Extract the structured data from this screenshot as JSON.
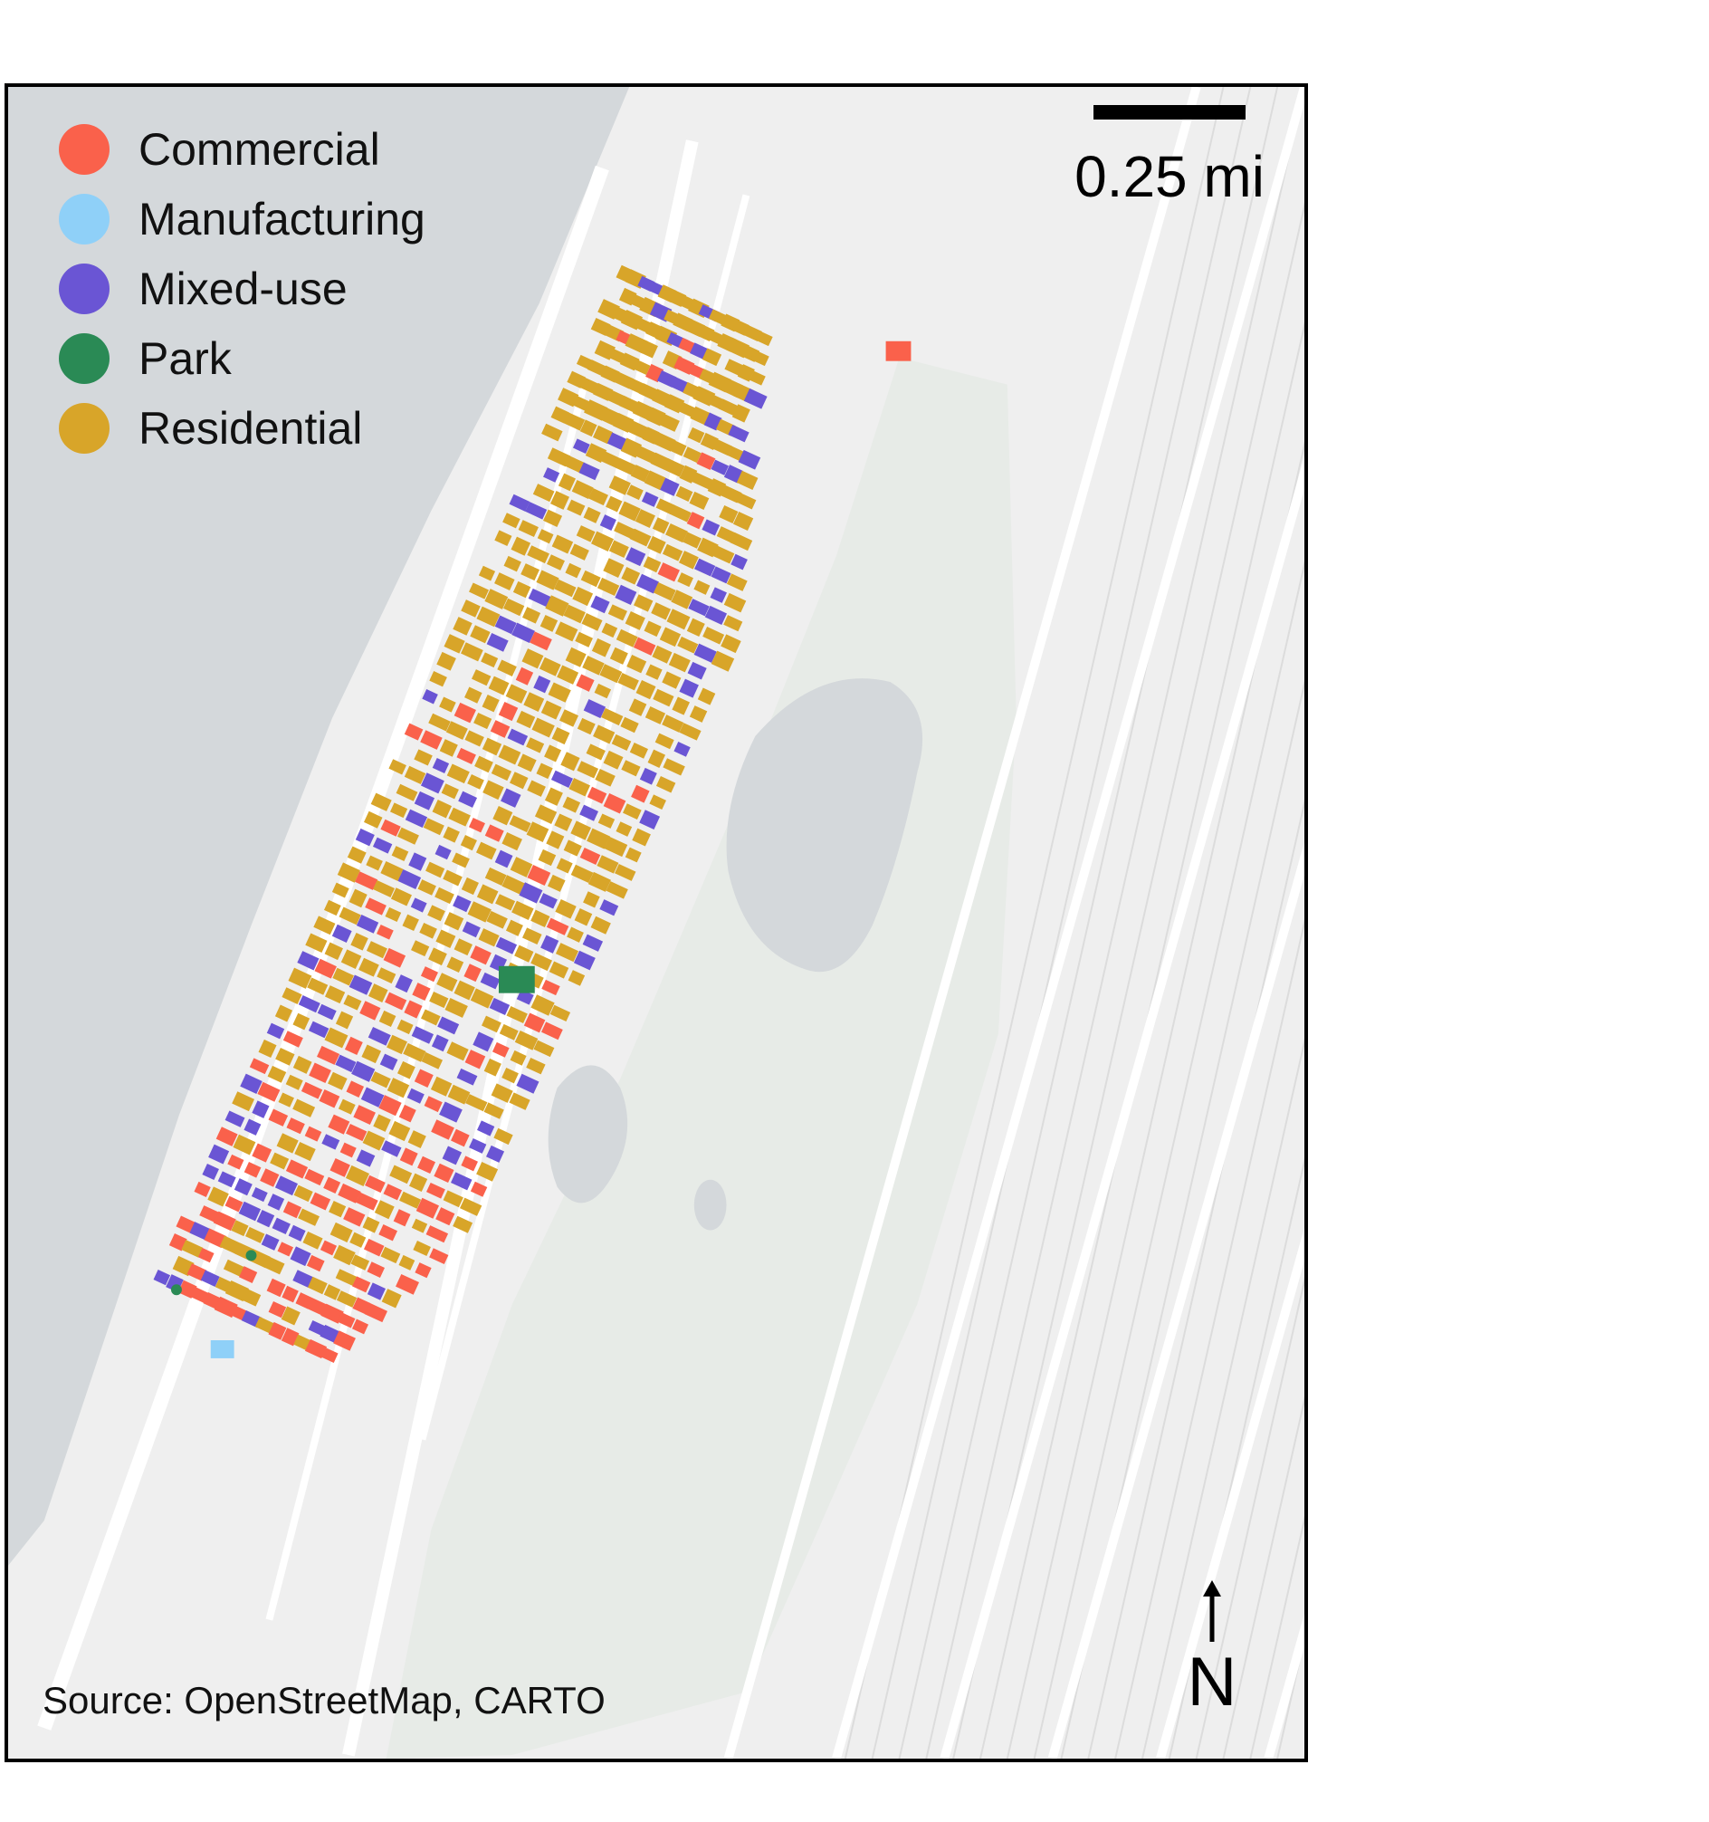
{
  "legend": [
    {
      "label": "Commercial",
      "color": "#fa614b"
    },
    {
      "label": "Manufacturing",
      "color": "#8fd0f8"
    },
    {
      "label": "Mixed-use",
      "color": "#6a55d4"
    },
    {
      "label": "Park",
      "color": "#2a8a55"
    },
    {
      "label": "Residential",
      "color": "#d8a529"
    }
  ],
  "scalebar": {
    "label": "0.25 mi"
  },
  "north_arrow": {
    "label": "N"
  },
  "source": "Source: OpenStreetMap, CARTO",
  "colors": {
    "water": "#d4d8db",
    "land": "#efefef",
    "park_land": "#e7ebe7",
    "roads": "#ffffff"
  }
}
